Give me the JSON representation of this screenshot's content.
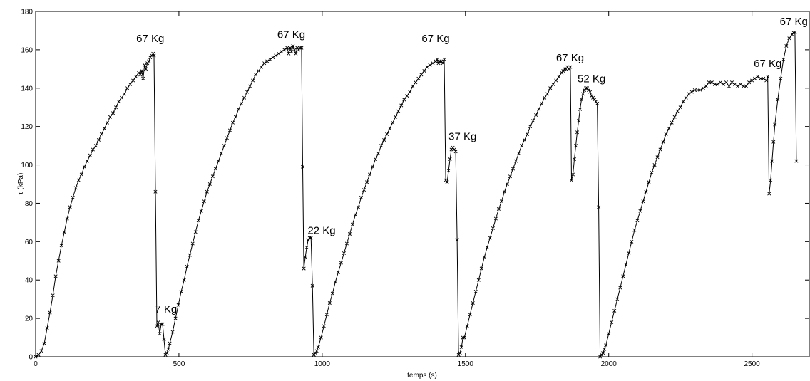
{
  "chart_data": {
    "type": "line",
    "title": "",
    "xlabel": "temps (s)",
    "ylabel": "τ (kPa)",
    "xlim": [
      0,
      2700
    ],
    "ylim": [
      0,
      180
    ],
    "x_ticks": [
      0,
      500,
      1000,
      1500,
      2000,
      2500
    ],
    "y_ticks": [
      0,
      20,
      40,
      60,
      80,
      100,
      120,
      140,
      160,
      180
    ],
    "grid": false,
    "legend": "none",
    "line_color": "#000000",
    "marker": "x",
    "series": [
      {
        "points": [
          [
            0,
            0
          ],
          [
            10,
            1
          ],
          [
            20,
            3
          ],
          [
            30,
            7
          ],
          [
            40,
            15
          ],
          [
            50,
            23
          ],
          [
            60,
            32
          ],
          [
            70,
            42
          ],
          [
            80,
            50
          ],
          [
            90,
            58
          ],
          [
            100,
            65
          ],
          [
            110,
            72
          ],
          [
            120,
            78
          ],
          [
            130,
            83
          ],
          [
            140,
            88
          ],
          [
            150,
            92
          ],
          [
            160,
            95
          ],
          [
            170,
            99
          ],
          [
            180,
            102
          ],
          [
            190,
            105
          ],
          [
            200,
            108
          ],
          [
            210,
            110
          ],
          [
            220,
            113
          ],
          [
            230,
            116
          ],
          [
            240,
            119
          ],
          [
            250,
            122
          ],
          [
            260,
            125
          ],
          [
            270,
            127
          ],
          [
            280,
            130
          ],
          [
            290,
            133
          ],
          [
            300,
            135
          ],
          [
            310,
            137
          ],
          [
            320,
            140
          ],
          [
            330,
            142
          ],
          [
            340,
            144
          ],
          [
            350,
            146
          ],
          [
            360,
            148
          ],
          [
            365,
            147
          ],
          [
            370,
            149
          ],
          [
            375,
            145
          ],
          [
            380,
            152
          ],
          [
            385,
            150
          ],
          [
            390,
            153
          ],
          [
            395,
            154
          ],
          [
            400,
            156
          ],
          [
            405,
            157
          ],
          [
            410,
            158
          ],
          [
            413,
            157
          ],
          [
            418,
            86
          ],
          [
            423,
            16
          ],
          [
            428,
            18
          ],
          [
            433,
            12
          ],
          [
            438,
            17
          ],
          [
            443,
            17
          ],
          [
            448,
            9
          ],
          [
            453,
            1
          ],
          [
            458,
            2
          ],
          [
            463,
            4
          ],
          [
            468,
            7
          ],
          [
            478,
            13
          ],
          [
            488,
            20
          ],
          [
            498,
            27
          ],
          [
            508,
            34
          ],
          [
            518,
            40
          ],
          [
            528,
            47
          ],
          [
            538,
            53
          ],
          [
            548,
            59
          ],
          [
            558,
            65
          ],
          [
            568,
            71
          ],
          [
            578,
            76
          ],
          [
            588,
            81
          ],
          [
            598,
            86
          ],
          [
            608,
            90
          ],
          [
            618,
            94
          ],
          [
            628,
            98
          ],
          [
            638,
            102
          ],
          [
            648,
            106
          ],
          [
            658,
            110
          ],
          [
            668,
            114
          ],
          [
            678,
            118
          ],
          [
            688,
            122
          ],
          [
            698,
            125
          ],
          [
            708,
            129
          ],
          [
            718,
            132
          ],
          [
            728,
            135
          ],
          [
            738,
            138
          ],
          [
            748,
            141
          ],
          [
            758,
            144
          ],
          [
            768,
            147
          ],
          [
            778,
            149
          ],
          [
            788,
            151
          ],
          [
            798,
            153
          ],
          [
            808,
            154
          ],
          [
            818,
            155
          ],
          [
            828,
            156
          ],
          [
            838,
            157
          ],
          [
            848,
            158
          ],
          [
            858,
            159
          ],
          [
            868,
            160
          ],
          [
            878,
            161
          ],
          [
            883,
            158
          ],
          [
            888,
            161
          ],
          [
            893,
            159
          ],
          [
            898,
            162
          ],
          [
            903,
            160
          ],
          [
            908,
            158
          ],
          [
            913,
            161
          ],
          [
            918,
            160
          ],
          [
            923,
            161
          ],
          [
            928,
            161
          ],
          [
            932,
            99
          ],
          [
            936,
            46
          ],
          [
            941,
            52
          ],
          [
            946,
            57
          ],
          [
            951,
            61
          ],
          [
            956,
            62
          ],
          [
            961,
            62
          ],
          [
            966,
            37
          ],
          [
            971,
            1
          ],
          [
            976,
            2
          ],
          [
            981,
            3
          ],
          [
            986,
            5
          ],
          [
            996,
            10
          ],
          [
            1006,
            16
          ],
          [
            1016,
            22
          ],
          [
            1026,
            28
          ],
          [
            1036,
            33
          ],
          [
            1046,
            39
          ],
          [
            1056,
            44
          ],
          [
            1066,
            49
          ],
          [
            1076,
            54
          ],
          [
            1086,
            59
          ],
          [
            1096,
            64
          ],
          [
            1106,
            69
          ],
          [
            1116,
            74
          ],
          [
            1126,
            78
          ],
          [
            1136,
            83
          ],
          [
            1146,
            87
          ],
          [
            1156,
            91
          ],
          [
            1166,
            95
          ],
          [
            1176,
            99
          ],
          [
            1186,
            103
          ],
          [
            1196,
            106
          ],
          [
            1206,
            110
          ],
          [
            1216,
            113
          ],
          [
            1226,
            116
          ],
          [
            1236,
            119
          ],
          [
            1246,
            122
          ],
          [
            1256,
            125
          ],
          [
            1266,
            128
          ],
          [
            1276,
            131
          ],
          [
            1286,
            134
          ],
          [
            1296,
            136
          ],
          [
            1306,
            138
          ],
          [
            1316,
            141
          ],
          [
            1326,
            143
          ],
          [
            1336,
            145
          ],
          [
            1346,
            147
          ],
          [
            1356,
            149
          ],
          [
            1366,
            151
          ],
          [
            1376,
            152
          ],
          [
            1386,
            153
          ],
          [
            1396,
            154
          ],
          [
            1401,
            155
          ],
          [
            1406,
            153
          ],
          [
            1411,
            154
          ],
          [
            1416,
            154
          ],
          [
            1421,
            153
          ],
          [
            1426,
            155
          ],
          [
            1431,
            92
          ],
          [
            1436,
            91
          ],
          [
            1441,
            97
          ],
          [
            1446,
            103
          ],
          [
            1451,
            108
          ],
          [
            1456,
            109
          ],
          [
            1461,
            108
          ],
          [
            1466,
            107
          ],
          [
            1471,
            61
          ],
          [
            1476,
            1
          ],
          [
            1481,
            2
          ],
          [
            1486,
            5
          ],
          [
            1491,
            10
          ],
          [
            1496,
            10
          ],
          [
            1506,
            16
          ],
          [
            1516,
            22
          ],
          [
            1526,
            28
          ],
          [
            1536,
            34
          ],
          [
            1546,
            40
          ],
          [
            1556,
            46
          ],
          [
            1566,
            52
          ],
          [
            1576,
            57
          ],
          [
            1586,
            62
          ],
          [
            1596,
            67
          ],
          [
            1606,
            72
          ],
          [
            1616,
            77
          ],
          [
            1626,
            81
          ],
          [
            1636,
            86
          ],
          [
            1646,
            90
          ],
          [
            1656,
            94
          ],
          [
            1666,
            98
          ],
          [
            1676,
            102
          ],
          [
            1686,
            106
          ],
          [
            1696,
            110
          ],
          [
            1706,
            113
          ],
          [
            1716,
            116
          ],
          [
            1726,
            120
          ],
          [
            1736,
            123
          ],
          [
            1746,
            126
          ],
          [
            1756,
            129
          ],
          [
            1766,
            132
          ],
          [
            1776,
            135
          ],
          [
            1786,
            137
          ],
          [
            1796,
            140
          ],
          [
            1806,
            142
          ],
          [
            1816,
            144
          ],
          [
            1826,
            146
          ],
          [
            1836,
            148
          ],
          [
            1841,
            149
          ],
          [
            1846,
            150
          ],
          [
            1851,
            150
          ],
          [
            1856,
            151
          ],
          [
            1861,
            150
          ],
          [
            1866,
            151
          ],
          [
            1870,
            92
          ],
          [
            1875,
            95
          ],
          [
            1880,
            103
          ],
          [
            1885,
            110
          ],
          [
            1890,
            117
          ],
          [
            1895,
            123
          ],
          [
            1900,
            129
          ],
          [
            1905,
            134
          ],
          [
            1910,
            137
          ],
          [
            1915,
            139
          ],
          [
            1920,
            140
          ],
          [
            1925,
            140
          ],
          [
            1930,
            139
          ],
          [
            1935,
            138
          ],
          [
            1940,
            136
          ],
          [
            1945,
            135
          ],
          [
            1950,
            134
          ],
          [
            1955,
            133
          ],
          [
            1960,
            132
          ],
          [
            1965,
            78
          ],
          [
            1970,
            0
          ],
          [
            1975,
            1
          ],
          [
            1980,
            2
          ],
          [
            1985,
            4
          ],
          [
            1990,
            6
          ],
          [
            2000,
            12
          ],
          [
            2010,
            18
          ],
          [
            2020,
            24
          ],
          [
            2030,
            30
          ],
          [
            2040,
            36
          ],
          [
            2050,
            42
          ],
          [
            2060,
            48
          ],
          [
            2070,
            54
          ],
          [
            2080,
            60
          ],
          [
            2090,
            66
          ],
          [
            2100,
            71
          ],
          [
            2110,
            76
          ],
          [
            2120,
            81
          ],
          [
            2130,
            86
          ],
          [
            2140,
            91
          ],
          [
            2150,
            96
          ],
          [
            2160,
            100
          ],
          [
            2170,
            104
          ],
          [
            2180,
            108
          ],
          [
            2190,
            112
          ],
          [
            2200,
            116
          ],
          [
            2210,
            119
          ],
          [
            2220,
            122
          ],
          [
            2230,
            125
          ],
          [
            2240,
            128
          ],
          [
            2250,
            130
          ],
          [
            2260,
            133
          ],
          [
            2270,
            135
          ],
          [
            2280,
            137
          ],
          [
            2290,
            138
          ],
          [
            2300,
            139
          ],
          [
            2310,
            139
          ],
          [
            2320,
            139
          ],
          [
            2330,
            140
          ],
          [
            2340,
            141
          ],
          [
            2350,
            143
          ],
          [
            2360,
            143
          ],
          [
            2370,
            142
          ],
          [
            2380,
            142
          ],
          [
            2390,
            143
          ],
          [
            2400,
            142
          ],
          [
            2410,
            143
          ],
          [
            2420,
            141
          ],
          [
            2430,
            143
          ],
          [
            2440,
            142
          ],
          [
            2450,
            141
          ],
          [
            2460,
            142
          ],
          [
            2470,
            141
          ],
          [
            2480,
            141
          ],
          [
            2490,
            143
          ],
          [
            2500,
            144
          ],
          [
            2510,
            145
          ],
          [
            2520,
            146
          ],
          [
            2530,
            145
          ],
          [
            2540,
            145
          ],
          [
            2550,
            144
          ],
          [
            2555,
            146
          ],
          [
            2560,
            85
          ],
          [
            2565,
            92
          ],
          [
            2570,
            102
          ],
          [
            2575,
            112
          ],
          [
            2580,
            121
          ],
          [
            2590,
            134
          ],
          [
            2600,
            145
          ],
          [
            2610,
            155
          ],
          [
            2620,
            162
          ],
          [
            2630,
            166
          ],
          [
            2640,
            168
          ],
          [
            2645,
            169
          ],
          [
            2650,
            169
          ],
          [
            2655,
            102
          ]
        ]
      }
    ],
    "annotations": [
      {
        "text": "67 Kg",
        "x": 400,
        "y": 164
      },
      {
        "text": "7 Kg",
        "x": 455,
        "y": 23
      },
      {
        "text": "67 Kg",
        "x": 892,
        "y": 166
      },
      {
        "text": "22 Kg",
        "x": 998,
        "y": 64
      },
      {
        "text": "67 Kg",
        "x": 1396,
        "y": 164
      },
      {
        "text": "37 Kg",
        "x": 1490,
        "y": 113
      },
      {
        "text": "67 Kg",
        "x": 1865,
        "y": 154
      },
      {
        "text": "52 Kg",
        "x": 1940,
        "y": 143
      },
      {
        "text": "67 Kg",
        "x": 2555,
        "y": 151
      },
      {
        "text": "67 Kg",
        "x": 2665,
        "y": 173
      }
    ]
  }
}
